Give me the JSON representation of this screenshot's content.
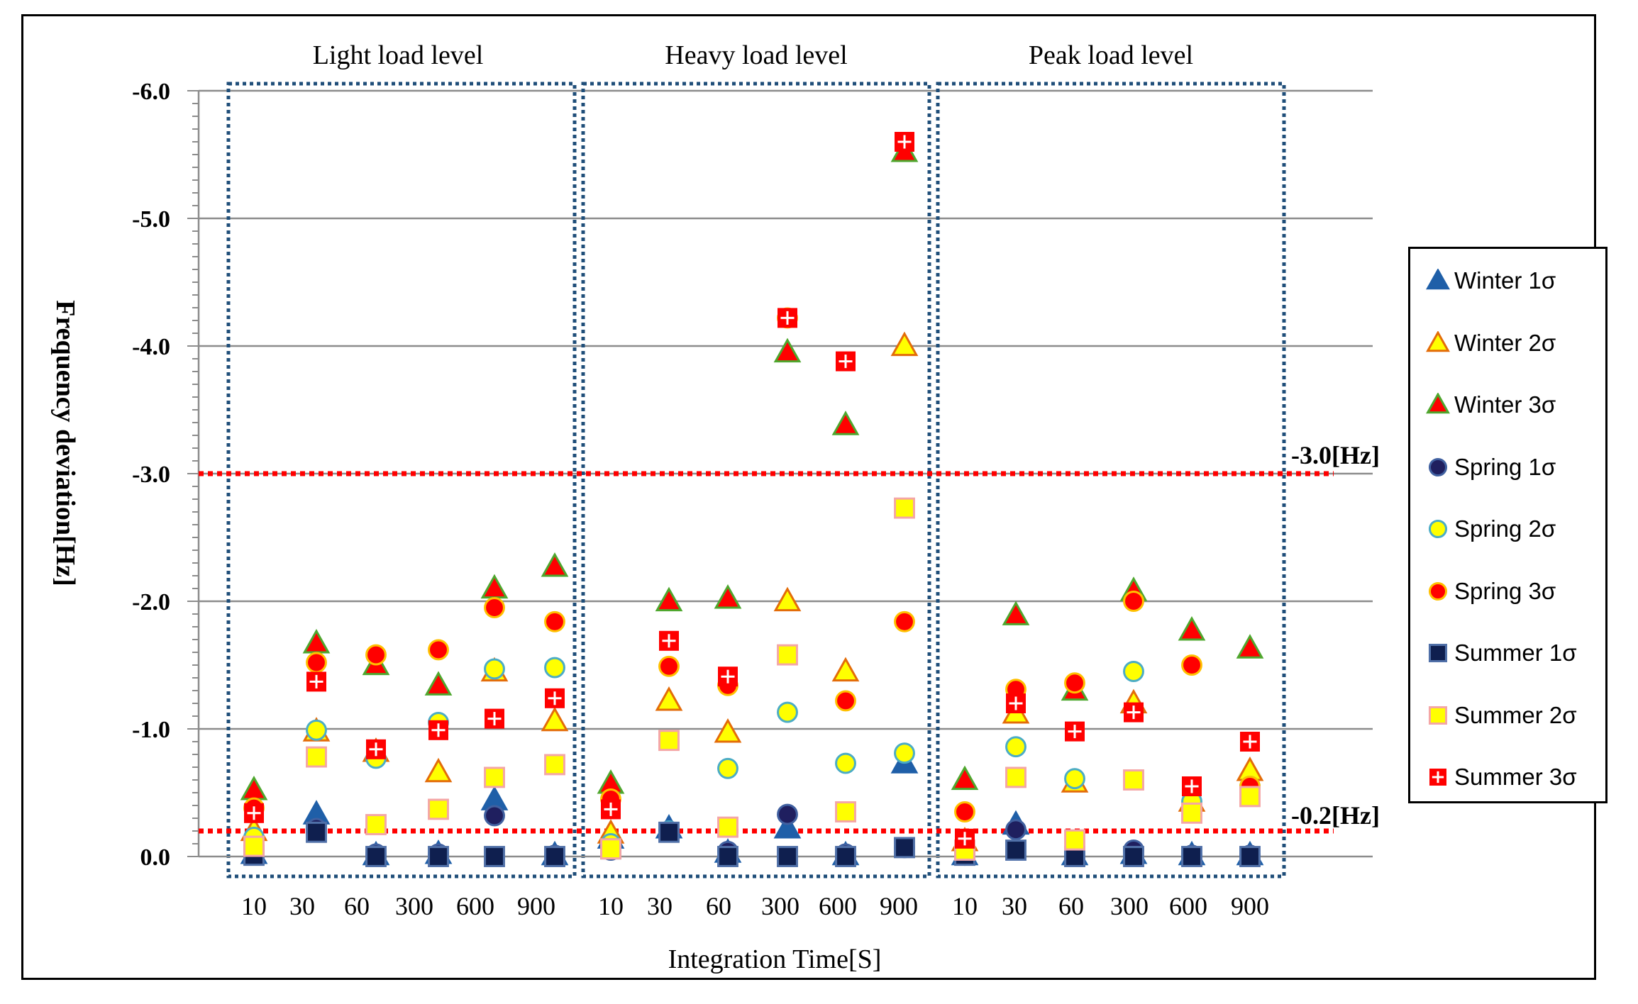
{
  "chart_data": {
    "type": "scatter",
    "title": "",
    "xlabel": "Integration Time[S]",
    "ylabel": "Frequency deviation[Hz]",
    "ylim": [
      0.0,
      -6.0
    ],
    "yticks": [
      "0.0",
      "-1.0",
      "-2.0",
      "-3.0",
      "-4.0",
      "-5.0",
      "-6.0"
    ],
    "grid": true,
    "groups": [
      "Light load level",
      "Heavy load level",
      "Peak load level"
    ],
    "categories": [
      "10",
      "30",
      "60",
      "300",
      "600",
      "900"
    ],
    "reference_lines": [
      {
        "value": -3.0,
        "label": "-3.0[Hz]",
        "color": "#ff0000"
      },
      {
        "value": -0.2,
        "label": "-0.2[Hz]",
        "color": "#ff0000"
      }
    ],
    "series": [
      {
        "name": "Winter 1σ",
        "marker": "triangle",
        "fill": "#1f5fa8",
        "stroke": "#1f5fa8",
        "values": [
          [
            -0.02,
            -0.33,
            -0.01,
            -0.02,
            -0.44,
            -0.01
          ],
          [
            -0.14,
            -0.22,
            -0.03,
            -0.22,
            -0.01,
            -0.73
          ],
          [
            -0.01,
            -0.25,
            -0.01,
            -0.02,
            -0.01,
            -0.01
          ]
        ]
      },
      {
        "name": "Winter 2σ",
        "marker": "triangle",
        "fill": "#ffff00",
        "stroke": "#e36c09",
        "values": [
          [
            -0.2,
            -0.98,
            -0.82,
            -0.66,
            -1.45,
            -1.06
          ],
          [
            -0.18,
            -1.22,
            -0.97,
            -2.0,
            -1.45,
            -4.0
          ],
          [
            -0.12,
            -1.12,
            -0.58,
            -1.2,
            -0.43,
            -0.67
          ]
        ]
      },
      {
        "name": "Winter 3σ",
        "marker": "triangle",
        "fill": "#ff0000",
        "stroke": "#4ea72e",
        "values": [
          [
            -0.52,
            -1.67,
            -1.5,
            -1.34,
            -2.1,
            -2.27
          ],
          [
            -0.57,
            -2.0,
            -2.02,
            -3.95,
            -3.38,
            -5.52
          ],
          [
            -0.6,
            -1.89,
            -1.3,
            -2.08,
            -1.77,
            -1.63
          ]
        ]
      },
      {
        "name": "Spring 1σ",
        "marker": "circle",
        "fill": "#1f1f5f",
        "stroke": "#4060a0",
        "values": [
          [
            -0.05,
            -0.22,
            -0.02,
            -0.02,
            -0.32,
            -0.01
          ],
          [
            -0.05,
            -0.2,
            -0.04,
            -0.33,
            -0.02,
            -0.07
          ],
          [
            -0.01,
            -0.21,
            -0.02,
            -0.05,
            -0.01,
            -0.01
          ]
        ]
      },
      {
        "name": "Spring 2σ",
        "marker": "circle",
        "fill": "#ffff00",
        "stroke": "#4bacc6",
        "values": [
          [
            -0.15,
            -0.99,
            -0.77,
            -1.05,
            -1.47,
            -1.48
          ],
          [
            -0.1,
            -0.2,
            -0.69,
            -1.13,
            -0.73,
            -0.81
          ],
          [
            -0.05,
            -0.86,
            -0.61,
            -1.45,
            -0.43,
            -0.55
          ]
        ]
      },
      {
        "name": "Spring 3σ",
        "marker": "circle",
        "fill": "#ff0000",
        "stroke": "#ffc000",
        "values": [
          [
            -0.38,
            -1.52,
            -1.58,
            -1.62,
            -1.95,
            -1.84
          ],
          [
            -0.45,
            -1.49,
            -1.34,
            -4.22,
            -1.22,
            -1.84
          ],
          [
            -0.35,
            -1.31,
            -1.36,
            -2.0,
            -1.5,
            -0.55
          ]
        ]
      },
      {
        "name": "Summer 1σ",
        "marker": "square",
        "fill": "#0f1f4f",
        "stroke": "#5070a8",
        "values": [
          [
            -0.01,
            -0.19,
            -0.0,
            -0.0,
            -0.0,
            -0.0
          ],
          [
            -0.06,
            -0.19,
            -0.0,
            -0.0,
            -0.0,
            -0.07
          ],
          [
            -0.01,
            -0.05,
            -0.0,
            -0.0,
            -0.0,
            -0.0
          ]
        ]
      },
      {
        "name": "Summer 2σ",
        "marker": "square",
        "fill": "#ffff00",
        "stroke": "#f4a6a6",
        "values": [
          [
            -0.08,
            -0.78,
            -0.25,
            -0.37,
            -0.62,
            -0.72
          ],
          [
            -0.06,
            -0.91,
            -0.23,
            -1.58,
            -0.35,
            -2.73
          ],
          [
            -0.05,
            -0.62,
            -0.13,
            -0.6,
            -0.34,
            -0.47
          ]
        ]
      },
      {
        "name": "Summer 3σ",
        "marker": "cross-square",
        "fill": "#ff0000",
        "stroke": "#ffffff",
        "values": [
          [
            -0.34,
            -1.37,
            -0.84,
            -0.99,
            -1.08,
            -1.24
          ],
          [
            -0.37,
            -1.69,
            -1.41,
            -4.22,
            -3.88,
            -5.6
          ],
          [
            -0.14,
            -1.2,
            -0.98,
            -1.13,
            -0.55,
            -0.9
          ]
        ]
      }
    ]
  },
  "labels": {
    "ref_3": "-3.0[Hz]",
    "ref_02": "-0.2[Hz]"
  }
}
